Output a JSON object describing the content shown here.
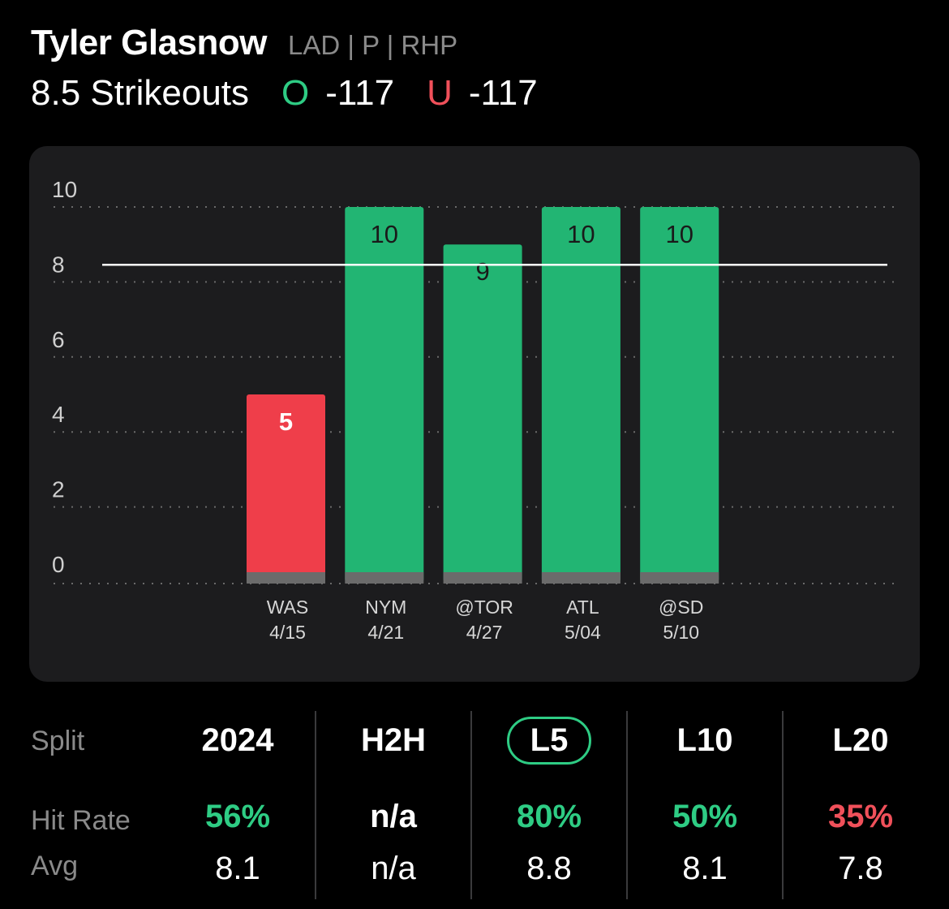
{
  "header": {
    "player_name": "Tyler Glasnow",
    "player_meta": "LAD | P | RHP",
    "prop_label": "8.5 Strikeouts",
    "over_letter": "O",
    "over_odds": "-117",
    "under_letter": "U",
    "under_odds": "-117"
  },
  "colors": {
    "over": "#2ecc84",
    "under": "#f0505a",
    "bar_green": "#22b573",
    "bar_red": "#ef3e4a",
    "bar_base": "#6b6b6b",
    "card_bg": "#1c1c1e"
  },
  "chart_data": {
    "type": "bar",
    "categories": [
      "WAS\n4/15",
      "NYM\n4/21",
      "@TOR\n4/27",
      "ATL\n5/04",
      "@SD\n5/10"
    ],
    "category_team": [
      "WAS",
      "NYM",
      "@TOR",
      "ATL",
      "@SD"
    ],
    "category_date": [
      "4/15",
      "4/21",
      "4/27",
      "5/04",
      "5/10"
    ],
    "values": [
      5,
      10,
      9,
      10,
      10
    ],
    "result": [
      "under",
      "over",
      "over",
      "over",
      "over"
    ],
    "line": 8.5,
    "ylim": [
      0,
      10
    ],
    "yticks": [
      0,
      2,
      4,
      6,
      8,
      10
    ],
    "grid": true
  },
  "stats": {
    "split_label": "Split",
    "hit_rate_label": "Hit Rate",
    "avg_label": "Avg",
    "columns": [
      {
        "label": "2024",
        "hit_rate": "56%",
        "avg": "8.1",
        "hit_color": "over",
        "selected": false
      },
      {
        "label": "H2H",
        "hit_rate": "n/a",
        "avg": "n/a",
        "hit_color": "neutral",
        "selected": false
      },
      {
        "label": "L5",
        "hit_rate": "80%",
        "avg": "8.8",
        "hit_color": "over",
        "selected": true
      },
      {
        "label": "L10",
        "hit_rate": "50%",
        "avg": "8.1",
        "hit_color": "over",
        "selected": false
      },
      {
        "label": "L20",
        "hit_rate": "35%",
        "avg": "7.8",
        "hit_color": "under",
        "selected": false
      }
    ]
  }
}
